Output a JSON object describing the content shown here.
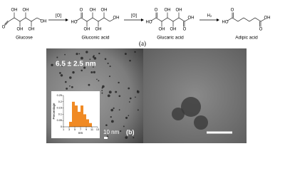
{
  "scheme": {
    "molecules": [
      {
        "name": "Glucose",
        "atoms": [
          "O",
          "OH",
          "OH",
          "OH",
          "OH",
          "OH"
        ]
      },
      {
        "name": "Gluconic acid",
        "atoms": [
          "HO",
          "O",
          "OH",
          "OH",
          "OH",
          "OH",
          "OH"
        ]
      },
      {
        "name": "Glucaric acid",
        "atoms": [
          "HO",
          "O",
          "OH",
          "OH",
          "OH",
          "OH",
          "O",
          "OH"
        ]
      },
      {
        "name": "Adipic acid",
        "atoms": [
          "HO",
          "O",
          "O",
          "OH"
        ]
      }
    ],
    "reagents": [
      "[O]",
      "[O]",
      "H₂"
    ],
    "panel_label": "(a)"
  },
  "tem": {
    "size_label": "6.5 ± 2.5 nm",
    "scale_label": "10 nm",
    "panel_label": "(b)"
  },
  "chart_data": {
    "type": "histogram",
    "bins": [
      3,
      4,
      5,
      6,
      7,
      8,
      9,
      10,
      11
    ],
    "values": [
      0.04,
      0.2,
      0.17,
      0.12,
      0.17,
      0.1,
      0.06,
      0.03
    ],
    "color": "#f08a24",
    "xlim": [
      1,
      13
    ],
    "xticks": [
      1,
      3,
      5,
      7,
      9,
      11,
      13
    ],
    "ylim": [
      0,
      0.25
    ],
    "yticks": [
      0,
      0.05,
      0.1,
      0.15,
      0.2,
      0.25
    ],
    "ylabel": "Percentage",
    "xlabel": "nm"
  }
}
